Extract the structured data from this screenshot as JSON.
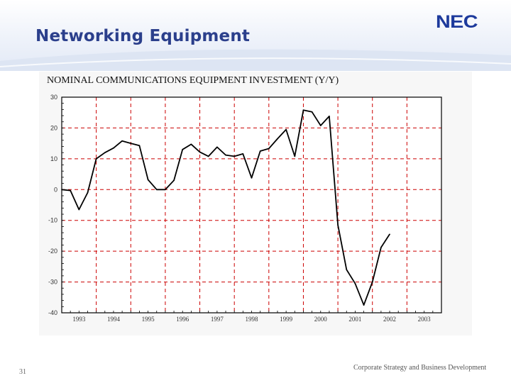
{
  "slide": {
    "title": "Networking Equipment",
    "logo_text": "NEC",
    "page_number": "31",
    "footer": "Corporate Strategy and Business Development"
  },
  "colors": {
    "title": "#2b3f8c",
    "logo": "#1d3a9c",
    "series_line": "#000000",
    "grid": "#cc0000"
  },
  "chart_data": {
    "type": "line",
    "title": "NOMINAL COMMUNICATIONS EQUIPMENT INVESTMENT (Y/Y)",
    "xlabel": "",
    "ylabel": "",
    "ylim": [
      -40,
      30
    ],
    "yticks": [
      30,
      20,
      10,
      0,
      -10,
      -20,
      -30,
      -40
    ],
    "ytick_labels": [
      "30",
      "20",
      "10",
      "0",
      "-10",
      "-20",
      "-30",
      "-40"
    ],
    "xlim": [
      1993.0,
      2004.0
    ],
    "xticks": [
      1993,
      1994,
      1995,
      1996,
      1997,
      1998,
      1999,
      2000,
      2001,
      2002,
      2003
    ],
    "xtick_labels": [
      "1993",
      "1994",
      "1995",
      "1996",
      "1997",
      "1998",
      "1999",
      "2000",
      "2001",
      "2002",
      "2003"
    ],
    "grid": true,
    "series": [
      {
        "x": [
          1993.0,
          1993.25,
          1993.5,
          1993.75,
          1994.0,
          1994.25,
          1994.5,
          1994.75,
          1995.0,
          1995.25,
          1995.5,
          1995.75,
          1996.0,
          1996.25,
          1996.5,
          1996.75,
          1997.0,
          1997.25,
          1997.5,
          1997.75,
          1998.0,
          1998.25,
          1998.5,
          1998.75,
          1999.0,
          1999.25,
          1999.5,
          1999.75,
          2000.0,
          2000.25,
          2000.5,
          2000.75,
          2001.0,
          2001.25,
          2001.5,
          2001.75,
          2002.0,
          2002.25,
          2002.5
        ],
        "values": [
          0,
          -0.3,
          -6.5,
          -1,
          10,
          12,
          13.5,
          15.8,
          15,
          14.3,
          3.2,
          0,
          0,
          3,
          13,
          14.7,
          12.2,
          10.8,
          13.8,
          11.2,
          10.8,
          11.6,
          3.8,
          12.5,
          13.3,
          16.5,
          19.5,
          10.8,
          25.8,
          25.2,
          20.8,
          23.8,
          -11.5,
          -26,
          -30.5,
          -37.5,
          -30,
          -18.8,
          -14.5
        ]
      }
    ]
  }
}
